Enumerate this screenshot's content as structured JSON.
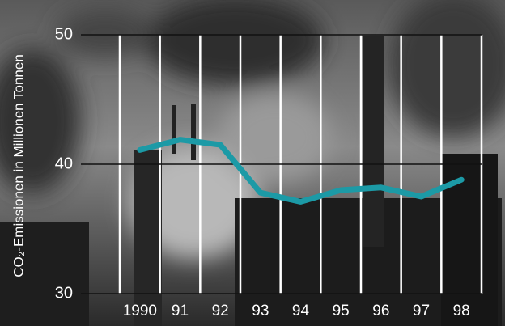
{
  "chart_data": {
    "type": "line",
    "y_label": "CO₂-Emissionen in Millionen Tonnen",
    "categories": [
      "1990",
      "91",
      "92",
      "93",
      "94",
      "95",
      "96",
      "97",
      "98"
    ],
    "series": [
      {
        "name": "CO₂-Emissionen",
        "color": "#1c9aa6",
        "values": [
          41.1,
          41.9,
          41.5,
          37.8,
          37.1,
          38.0,
          38.2,
          37.5,
          38.8
        ]
      }
    ],
    "ylim": [
      30,
      50
    ],
    "yticks": [
      30,
      40,
      50
    ],
    "grid": true
  }
}
